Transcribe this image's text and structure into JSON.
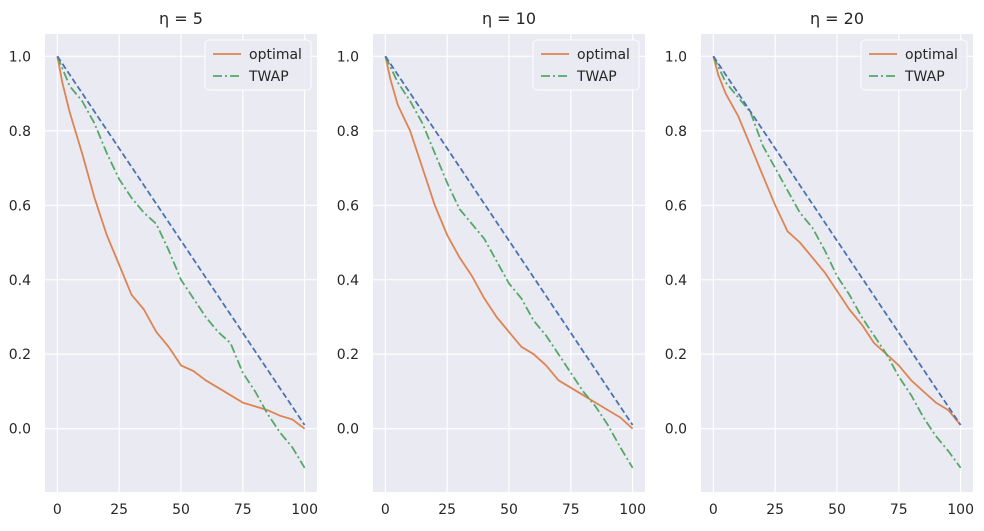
{
  "chart_data": [
    {
      "type": "line",
      "title": "η = 5",
      "x_ticks": [
        0,
        25,
        50,
        75,
        100
      ],
      "y_ticks": [
        0.0,
        0.2,
        0.4,
        0.6,
        0.8,
        1.0
      ],
      "y_tick_labels": [
        "0.0",
        "0.2",
        "0.4",
        "0.6",
        "0.8",
        "1.0"
      ],
      "xlim": [
        -5,
        105
      ],
      "ylim": [
        -0.17,
        1.06
      ],
      "grid": true,
      "legend": "top-right",
      "series": [
        {
          "name": "optimal",
          "color": "#dd8452",
          "style": "solid",
          "x": [
            0,
            2,
            5,
            10,
            15,
            20,
            25,
            30,
            35,
            40,
            45,
            50,
            55,
            60,
            65,
            70,
            75,
            80,
            85,
            90,
            95,
            100
          ],
          "y": [
            1.0,
            0.93,
            0.85,
            0.74,
            0.62,
            0.52,
            0.44,
            0.36,
            0.32,
            0.26,
            0.22,
            0.17,
            0.155,
            0.13,
            0.11,
            0.09,
            0.07,
            0.06,
            0.05,
            0.035,
            0.025,
            0.0
          ]
        },
        {
          "name": "TWAP",
          "color": "#55a868",
          "style": "dashdot",
          "x": [
            0,
            5,
            10,
            15,
            20,
            25,
            30,
            35,
            40,
            45,
            50,
            55,
            60,
            65,
            70,
            75,
            80,
            85,
            90,
            95,
            100
          ],
          "y": [
            1.0,
            0.92,
            0.88,
            0.82,
            0.74,
            0.67,
            0.62,
            0.58,
            0.55,
            0.48,
            0.4,
            0.35,
            0.3,
            0.26,
            0.23,
            0.15,
            0.1,
            0.04,
            -0.01,
            -0.05,
            -0.105
          ]
        },
        {
          "name": "",
          "color": "#4c72b0",
          "style": "dashed",
          "x": [
            0,
            100
          ],
          "y": [
            1.0,
            0.01
          ]
        }
      ]
    },
    {
      "type": "line",
      "title": "η = 10",
      "x_ticks": [
        0,
        25,
        50,
        75,
        100
      ],
      "y_ticks": [
        0.0,
        0.2,
        0.4,
        0.6,
        0.8,
        1.0
      ],
      "y_tick_labels": [
        "0.0",
        "0.2",
        "0.4",
        "0.6",
        "0.8",
        "1.0"
      ],
      "xlim": [
        -5,
        105
      ],
      "ylim": [
        -0.17,
        1.06
      ],
      "grid": true,
      "legend": "top-right",
      "series": [
        {
          "name": "optimal",
          "color": "#dd8452",
          "style": "solid",
          "x": [
            0,
            2,
            5,
            10,
            15,
            20,
            25,
            30,
            35,
            40,
            45,
            50,
            55,
            60,
            65,
            70,
            75,
            80,
            85,
            90,
            95,
            100
          ],
          "y": [
            1.0,
            0.94,
            0.87,
            0.8,
            0.7,
            0.6,
            0.52,
            0.46,
            0.41,
            0.35,
            0.3,
            0.26,
            0.22,
            0.2,
            0.17,
            0.13,
            0.11,
            0.09,
            0.07,
            0.05,
            0.03,
            0.0
          ]
        },
        {
          "name": "TWAP",
          "color": "#55a868",
          "style": "dashdot",
          "x": [
            0,
            5,
            10,
            15,
            20,
            25,
            30,
            35,
            40,
            45,
            50,
            55,
            60,
            65,
            70,
            75,
            80,
            85,
            90,
            95,
            100
          ],
          "y": [
            1.0,
            0.93,
            0.88,
            0.82,
            0.74,
            0.66,
            0.59,
            0.55,
            0.51,
            0.45,
            0.39,
            0.35,
            0.29,
            0.25,
            0.2,
            0.15,
            0.1,
            0.06,
            0.01,
            -0.05,
            -0.105
          ]
        },
        {
          "name": "",
          "color": "#4c72b0",
          "style": "dashed",
          "x": [
            0,
            100
          ],
          "y": [
            1.0,
            0.01
          ]
        }
      ]
    },
    {
      "type": "line",
      "title": "η = 20",
      "x_ticks": [
        0,
        25,
        50,
        75,
        100
      ],
      "y_ticks": [
        0.0,
        0.2,
        0.4,
        0.6,
        0.8,
        1.0
      ],
      "y_tick_labels": [
        "0.0",
        "0.2",
        "0.4",
        "0.6",
        "0.8",
        "1.0"
      ],
      "xlim": [
        -5,
        105
      ],
      "ylim": [
        -0.17,
        1.06
      ],
      "grid": true,
      "legend": "top-right",
      "series": [
        {
          "name": "optimal",
          "color": "#dd8452",
          "style": "solid",
          "x": [
            0,
            2,
            5,
            10,
            15,
            20,
            25,
            30,
            35,
            40,
            45,
            50,
            55,
            60,
            65,
            70,
            75,
            80,
            85,
            90,
            95,
            100
          ],
          "y": [
            1.0,
            0.95,
            0.9,
            0.84,
            0.76,
            0.68,
            0.6,
            0.53,
            0.5,
            0.46,
            0.42,
            0.37,
            0.32,
            0.28,
            0.23,
            0.2,
            0.17,
            0.13,
            0.1,
            0.07,
            0.05,
            0.01
          ]
        },
        {
          "name": "TWAP",
          "color": "#55a868",
          "style": "dashdot",
          "x": [
            0,
            5,
            10,
            15,
            20,
            25,
            30,
            35,
            40,
            45,
            50,
            55,
            60,
            65,
            70,
            75,
            80,
            85,
            90,
            95,
            100
          ],
          "y": [
            1.0,
            0.93,
            0.89,
            0.85,
            0.76,
            0.7,
            0.64,
            0.58,
            0.54,
            0.48,
            0.41,
            0.36,
            0.3,
            0.25,
            0.2,
            0.14,
            0.09,
            0.03,
            -0.02,
            -0.06,
            -0.105
          ]
        },
        {
          "name": "",
          "color": "#4c72b0",
          "style": "dashed",
          "x": [
            0,
            100
          ],
          "y": [
            1.0,
            0.01
          ]
        }
      ]
    }
  ]
}
